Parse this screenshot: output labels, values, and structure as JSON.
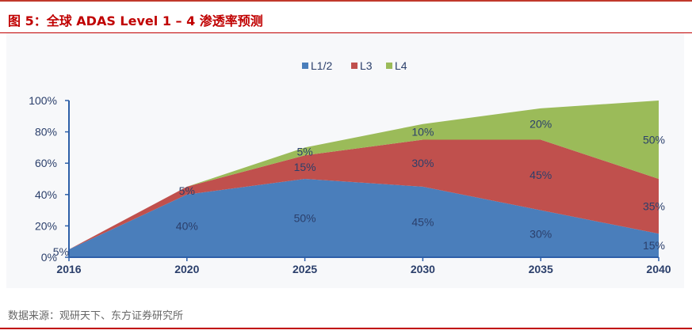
{
  "figure": {
    "number": "图 5：",
    "title": "全球 ADAS Level 1 – 4  渗透率预测"
  },
  "source": "数据来源：观研天下、东方证券研究所",
  "chart_data": {
    "type": "area",
    "stacked": true,
    "x": [
      "2016",
      "2020",
      "2025",
      "2030",
      "2035",
      "2040"
    ],
    "series": [
      {
        "name": "L1/2",
        "color": "#4a7ebb",
        "values": [
          5,
          40,
          50,
          45,
          30,
          15
        ]
      },
      {
        "name": "L3",
        "color": "#c0504d",
        "values": [
          0,
          5,
          15,
          30,
          45,
          35
        ]
      },
      {
        "name": "L4",
        "color": "#9bbb59",
        "values": [
          0,
          0,
          5,
          10,
          20,
          50
        ]
      }
    ],
    "data_labels": [
      [
        "5%",
        "40%",
        "50%",
        "45%",
        "30%",
        "15%"
      ],
      [
        "",
        "5%",
        "15%",
        "30%",
        "45%",
        "35%"
      ],
      [
        "",
        "",
        "5%",
        "10%",
        "20%",
        "50%"
      ]
    ],
    "ylim": [
      0,
      100
    ],
    "yticks": [
      "0%",
      "20%",
      "40%",
      "60%",
      "80%",
      "100%"
    ],
    "legend_position": "top-center",
    "grid": false
  }
}
